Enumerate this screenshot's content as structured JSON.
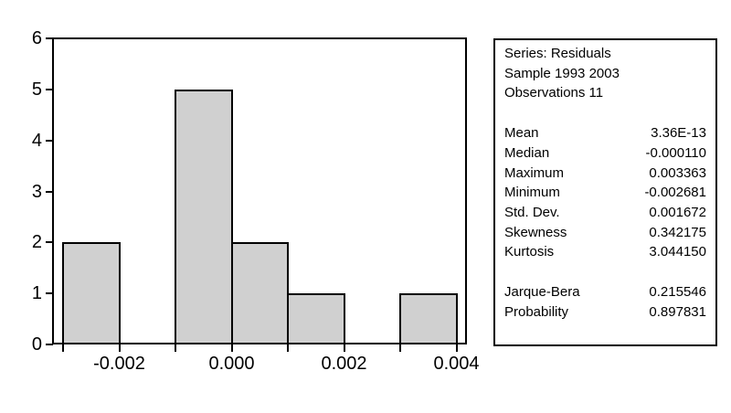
{
  "chart_data": {
    "type": "bar",
    "subtype": "histogram",
    "title": "",
    "xlabel": "",
    "ylabel": "",
    "grid": false,
    "legend": "none",
    "bar_fill": "#d0d0d0",
    "bar_border": "#000000",
    "ylim": [
      0,
      6
    ],
    "xlim": [
      -0.0032,
      0.0042
    ],
    "bins": [
      {
        "range": [
          -0.003,
          -0.002
        ],
        "count": 2
      },
      {
        "range": [
          -0.002,
          -0.001
        ],
        "count": 0
      },
      {
        "range": [
          -0.001,
          0.0
        ],
        "count": 5
      },
      {
        "range": [
          0.0,
          0.001
        ],
        "count": 2
      },
      {
        "range": [
          0.001,
          0.002
        ],
        "count": 1
      },
      {
        "range": [
          0.002,
          0.003
        ],
        "count": 0
      },
      {
        "range": [
          0.003,
          0.004
        ],
        "count": 1
      }
    ],
    "x_ticks": [
      {
        "v": -0.002,
        "label": "-0.002"
      },
      {
        "v": 0.0,
        "label": "0.000"
      },
      {
        "v": 0.002,
        "label": "0.002"
      },
      {
        "v": 0.004,
        "label": "0.004"
      }
    ],
    "y_ticks": [
      {
        "v": 0,
        "label": "0"
      },
      {
        "v": 1,
        "label": "1"
      },
      {
        "v": 2,
        "label": "2"
      },
      {
        "v": 3,
        "label": "3"
      },
      {
        "v": 4,
        "label": "4"
      },
      {
        "v": 5,
        "label": "5"
      },
      {
        "v": 6,
        "label": "6"
      }
    ]
  },
  "stats_box": {
    "header": [
      "Series: Residuals",
      "Sample 1993 2003",
      "Observations 11"
    ],
    "stats": [
      {
        "label": "Mean",
        "value": "3.36E-13"
      },
      {
        "label": "Median",
        "value": "-0.000110"
      },
      {
        "label": "Maximum",
        "value": "0.003363"
      },
      {
        "label": "Minimum",
        "value": "-0.002681"
      },
      {
        "label": "Std. Dev.",
        "value": "0.001672"
      },
      {
        "label": "Skewness",
        "value": "0.342175"
      },
      {
        "label": "Kurtosis",
        "value": "3.044150"
      }
    ],
    "tests": [
      {
        "label": "Jarque-Bera",
        "value": "0.215546"
      },
      {
        "label": "Probability",
        "value": "0.897831"
      }
    ]
  }
}
